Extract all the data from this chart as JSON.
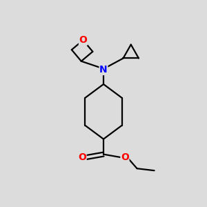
{
  "bg_color": "#dcdcdc",
  "bond_color": "#000000",
  "N_color": "#0000ff",
  "O_color": "#ff0000",
  "line_width": 1.6,
  "fig_size": [
    3.0,
    3.0
  ],
  "dpi": 100,
  "xlim": [
    0,
    10
  ],
  "ylim": [
    0,
    10
  ]
}
